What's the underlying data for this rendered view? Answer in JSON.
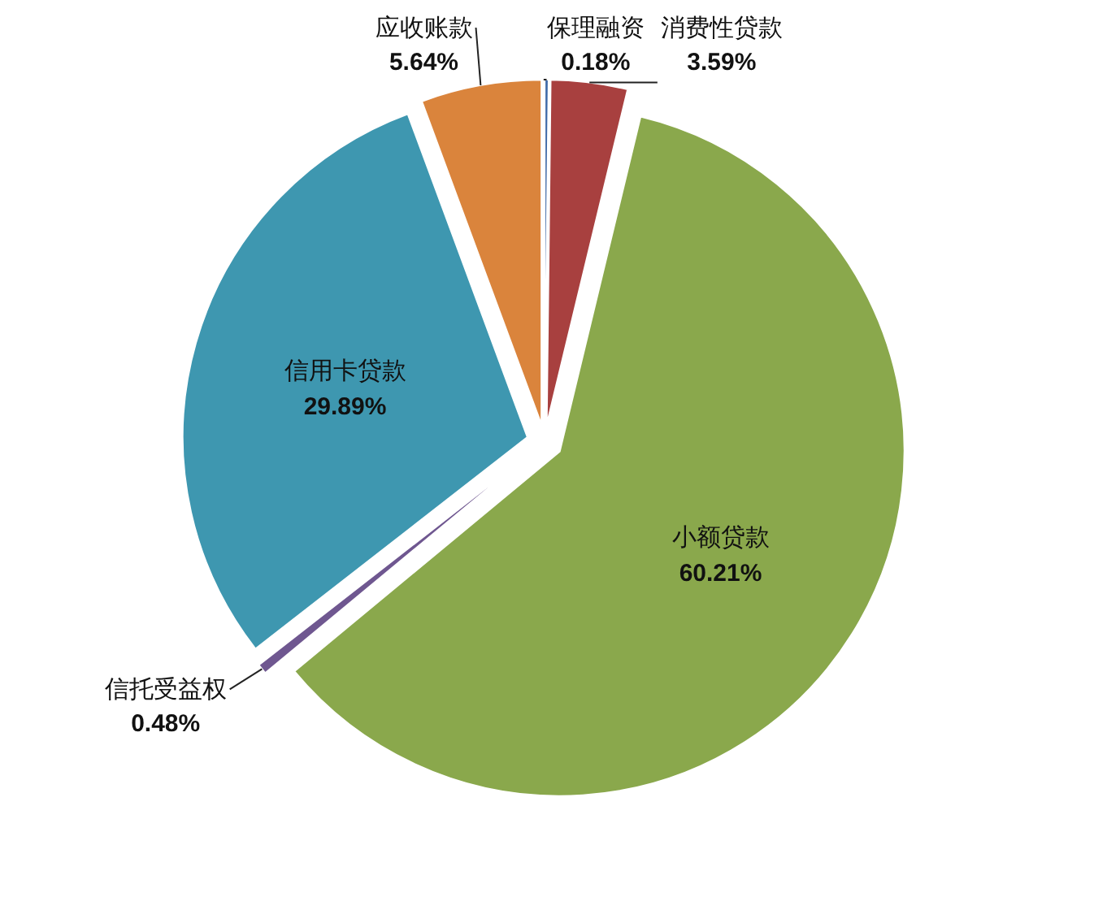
{
  "chart_data": {
    "type": "pie",
    "categories": [
      "保理融资",
      "消费性贷款",
      "小额贷款",
      "信托受益权",
      "信用卡贷款",
      "应收账款"
    ],
    "values": [
      0.18,
      3.59,
      60.21,
      0.48,
      29.89,
      5.64
    ],
    "colors": [
      "#3f6aa8",
      "#a8403f",
      "#8aa84c",
      "#6f5790",
      "#3e97b0",
      "#da843c"
    ],
    "value_labels": [
      "0.18%",
      "3.59%",
      "60.21%",
      "0.48%",
      "29.89%",
      "5.64%"
    ],
    "legend": false
  }
}
